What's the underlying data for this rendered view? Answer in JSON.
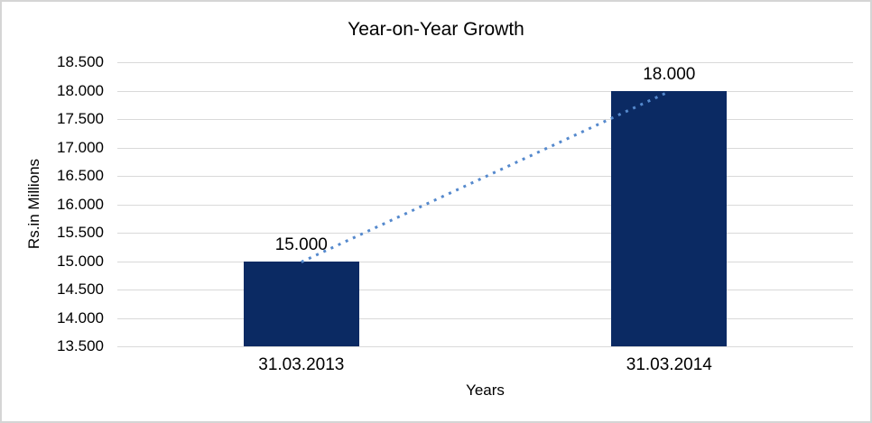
{
  "chart": {
    "title": "Year-on-Year Growth",
    "y_axis_title": "Rs.in Millions",
    "x_axis_title": "Years"
  },
  "chart_data": {
    "type": "bar",
    "title": "Year-on-Year Growth",
    "xlabel": "Years",
    "ylabel": "Rs.in Millions",
    "categories": [
      "31.03.2013",
      "31.03.2014"
    ],
    "values": [
      15000,
      18000
    ],
    "data_labels": [
      "15.000",
      "18.000"
    ],
    "ylim": [
      13500,
      18500
    ],
    "ytick_step": 500,
    "ytick_labels": [
      "13.500",
      "14.000",
      "14.500",
      "15.000",
      "15.500",
      "16.000",
      "16.500",
      "17.000",
      "17.500",
      "18.000",
      "18.500"
    ],
    "grid": true,
    "legend": false,
    "bar_color": "#0b2a63",
    "gridline_color": "#d9d9d9",
    "trendline": {
      "style": "dotted",
      "color": "#5589cd",
      "from_value": 15000,
      "to_value": 18000
    }
  }
}
